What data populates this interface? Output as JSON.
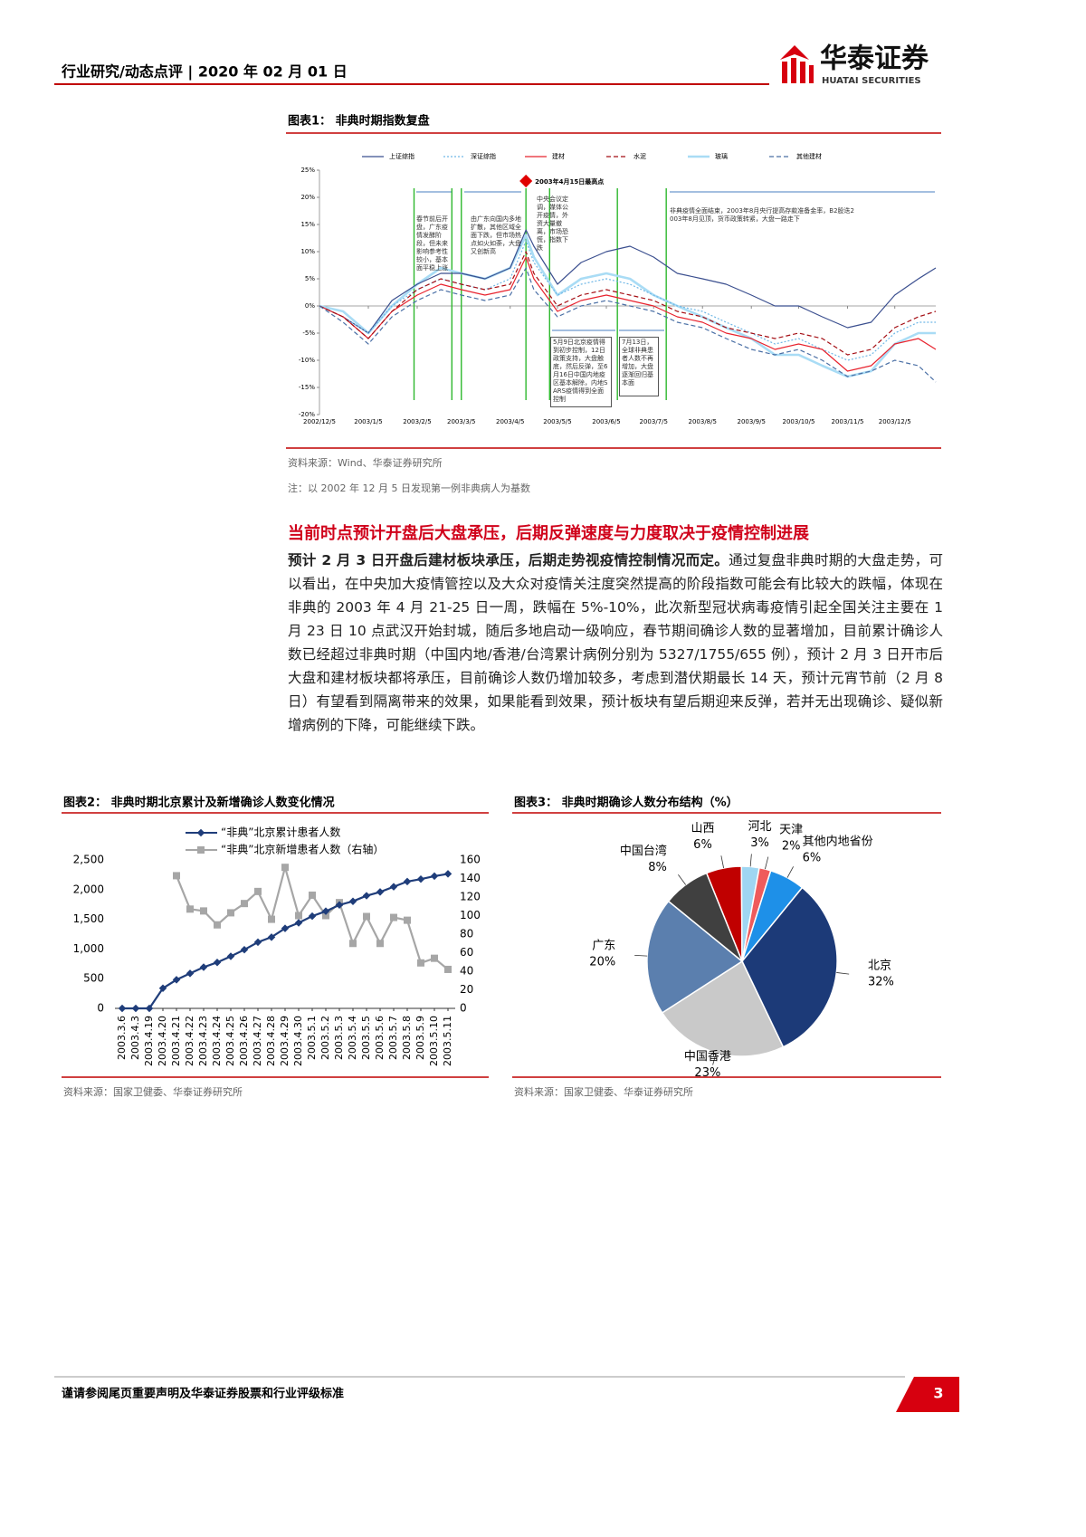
{
  "header": {
    "title": "行业研究/动态点评 | 2020 年 02 月 01 日",
    "logo_cn": "华泰证券",
    "logo_en": "HUATAI SECURITIES"
  },
  "chart_data": [
    {
      "type": "line",
      "title": "图表1： 非典时期指数复盘",
      "x": [
        "2002/12/5",
        "2002/12/20",
        "2003/1/5",
        "2003/1/20",
        "2003/2/5",
        "2003/2/20",
        "2003/3/5",
        "2003/3/20",
        "2003/4/5",
        "2003/4/15",
        "2003/4/20",
        "2003/5/5",
        "2003/5/20",
        "2003/6/5",
        "2003/6/20",
        "2003/7/5",
        "2003/7/20",
        "2003/8/5",
        "2003/8/20",
        "2003/9/5",
        "2003/9/20",
        "2003/10/5",
        "2003/10/20",
        "2003/11/5",
        "2003/11/20",
        "2003/12/5",
        "2003/12/20",
        "2003/12/31"
      ],
      "series": [
        {
          "name": "上证综指",
          "color": "#3b4f8f",
          "style": "solid",
          "values": [
            0,
            -2,
            -5,
            1,
            4,
            6,
            6,
            5,
            7,
            14,
            11,
            4,
            8,
            10,
            11,
            9,
            6,
            5,
            4,
            2,
            0,
            0,
            -2,
            -4,
            -3,
            2,
            5,
            7
          ]
        },
        {
          "name": "深证综指",
          "color": "#6fb7e6",
          "style": "dotted",
          "values": [
            0,
            -2,
            -5,
            0,
            3,
            5,
            4,
            3,
            5,
            12,
            8,
            2,
            4,
            5,
            4,
            2,
            0,
            -1,
            -3,
            -5,
            -7,
            -6,
            -8,
            -10,
            -9,
            -5,
            -3,
            -3
          ]
        },
        {
          "name": "建材",
          "color": "#e8232e",
          "style": "solid",
          "values": [
            0,
            -2,
            -6,
            -1,
            2,
            4,
            3,
            2,
            3,
            9,
            5,
            -1,
            1,
            2,
            1,
            0,
            -2,
            -3,
            -5,
            -6,
            -8,
            -7,
            -8,
            -12,
            -11,
            -7,
            -6,
            -8
          ]
        },
        {
          "name": "水泥",
          "color": "#a50f15",
          "style": "dashed",
          "values": [
            0,
            -2,
            -6,
            -1,
            3,
            5,
            4,
            3,
            4,
            10,
            6,
            0,
            2,
            3,
            2,
            1,
            -1,
            -2,
            -4,
            -5,
            -6,
            -5,
            -6,
            -9,
            -8,
            -4,
            -2,
            -1
          ]
        },
        {
          "name": "玻璃",
          "color": "#a9dcf5",
          "style": "thick",
          "values": [
            0,
            -1,
            -5,
            0,
            4,
            7,
            6,
            5,
            7,
            13,
            9,
            2,
            5,
            6,
            5,
            2,
            0,
            -2,
            -4,
            -6,
            -9,
            -9,
            -11,
            -13,
            -12,
            -7,
            -5,
            -5
          ]
        },
        {
          "name": "其他建材",
          "color": "#4a6fa5",
          "style": "dashed",
          "values": [
            0,
            -3,
            -7,
            -2,
            1,
            3,
            2,
            1,
            2,
            7,
            3,
            -2,
            0,
            1,
            0,
            -1,
            -3,
            -4,
            -6,
            -8,
            -9,
            -8,
            -10,
            -13,
            -12,
            -10,
            -11,
            -14
          ]
        }
      ],
      "xlim": [
        "2002/12/5",
        "2003/12/31"
      ],
      "xticks": [
        "2002/12/5",
        "2003/1/5",
        "2003/2/5",
        "2003/3/5",
        "2003/4/5",
        "2003/5/5",
        "2003/6/5",
        "2003/7/5",
        "2003/8/5",
        "2003/9/5",
        "2003/10/5",
        "2003/11/5",
        "2003/12/5"
      ],
      "ylim": [
        -20,
        25
      ],
      "yticks": [
        {
          "value": 25,
          "label": "25%"
        },
        {
          "value": 20,
          "label": "20%"
        },
        {
          "value": 15,
          "label": "15%"
        },
        {
          "value": 10,
          "label": "10%"
        },
        {
          "value": 5,
          "label": "5%"
        },
        {
          "value": 0,
          "label": "0%"
        },
        {
          "value": -5,
          "label": "-5%"
        },
        {
          "value": -10,
          "label": "-10%"
        },
        {
          "value": -15,
          "label": "-15%"
        },
        {
          "value": -20,
          "label": "-20%"
        }
      ],
      "event_dates": [
        "2003/2/3",
        "2003/2/27",
        "2003/3/5",
        "2003/4/15",
        "2003/4/30",
        "2003/6/12",
        "2003/7/13"
      ],
      "peak": {
        "x": "2003/4/15",
        "label": "2003年4月15日最高点"
      },
      "annotations": [
        "春节前后开盘，广东疫情发酵阶段，但未来影响参考性较小，基本面平稳上涨",
        "由广东向国内多地扩散，其他区域全面下跌，但市场热点如火如荼，大盘又创新高",
        "中央会议定调，媒体公开疫情，外资大量撤离，市场恐慌，指数下跌",
        "非典疫情全面结束，2003年8月央行提高存款准备金率，B2股迭2003年8月见顶，货币政策转紧，大盘一路走下",
        "5月9日北京疫情得到初步控制，12日政策支持，大盘触底，然后反弹，至6月16日中国内地疫区基本解除，内地SARS疫情得到全面控制",
        "7月13日，全球非典患者人数不再增加，大盘逐渐回归基本面"
      ],
      "source": "资料来源：Wind、华泰证券研究所",
      "note": "注：以 2002 年 12 月 5 日发现第一例非典病人为基数"
    },
    {
      "type": "line",
      "title": "图表2： 非典时期北京累计及新增确诊人数变化情况",
      "categories": [
        "2003.3.6",
        "2003.4.3",
        "2003.4.19",
        "2003.4.20",
        "2003.4.21",
        "2003.4.22",
        "2003.4.23",
        "2003.4.24",
        "2003.4.25",
        "2003.4.26",
        "2003.4.27",
        "2003.4.28",
        "2003.4.29",
        "2003.4.30",
        "2003.5.1",
        "2003.5.2",
        "2003.5.3",
        "2003.5.4",
        "2003.5.5",
        "2003.5.6",
        "2003.5.7",
        "2003.5.8",
        "2003.5.9",
        "2003.5.10",
        "2003.5.11"
      ],
      "series": [
        {
          "name": "“非典”北京累计患者人数",
          "color": "#1f3d7a",
          "marker": "diamond",
          "values": [
            0,
            0,
            0,
            339,
            482,
            588,
            693,
            774,
            877,
            988,
            1114,
            1199,
            1347,
            1440,
            1553,
            1636,
            1741,
            1803,
            1897,
            1960,
            2049,
            2136,
            2177,
            2227,
            2265
          ]
        },
        {
          "name": "“非典”北京新增患者人数（右轴）",
          "color": "#a6a6a6",
          "marker": "square",
          "axis": "y2",
          "values": [
            null,
            null,
            null,
            null,
            143,
            107,
            105,
            90,
            103,
            113,
            126,
            96,
            152,
            100,
            122,
            100,
            114,
            70,
            99,
            70,
            98,
            95,
            49,
            54,
            42
          ]
        }
      ],
      "ylim": [
        0,
        2500
      ],
      "yticks": [
        0,
        500,
        {
          "value": 1000,
          "label": "1,000"
        },
        {
          "value": 1500,
          "label": "1,500"
        },
        {
          "value": 2000,
          "label": "2,000"
        },
        {
          "value": 2500,
          "label": "2,500"
        }
      ],
      "y2lim": [
        0,
        160
      ],
      "y2ticks": [
        0,
        20,
        40,
        60,
        80,
        100,
        120,
        140,
        160
      ],
      "source": "资料来源：国家卫健委、华泰证券研究所"
    },
    {
      "type": "pie",
      "title": "图表3： 非典时期确诊人数分布结构（%）",
      "categories": [
        "山西",
        "河北",
        "天津",
        "其他内地省份",
        "北京",
        "中国香港",
        "广东",
        "中国台湾"
      ],
      "values": [
        6,
        3,
        2,
        6,
        32,
        23,
        20,
        8
      ],
      "value_labels": [
        "6%",
        "3%",
        "2%",
        "6%",
        "32%",
        "23%",
        "20%",
        "8%"
      ],
      "colors": [
        "#c00000",
        "#9fd6f2",
        "#ef5b5b",
        "#1e90e8",
        "#1c3a78",
        "#c9c9c9",
        "#5b7fae",
        "#404040"
      ],
      "source": "资料来源：国家卫健委、华泰证券研究所"
    }
  ],
  "body": {
    "heading": "当前时点预计开盘后大盘承压，后期反弹速度与力度取决于疫情控制进展",
    "lead": "预计 2 月 3 日开盘后建材板块承压，后期走势视疫情控制情况而定。",
    "text": "通过复盘非典时期的大盘走势，可以看出，在中央加大疫情管控以及大众对疫情关注度突然提高的阶段指数可能会有比较大的跌幅，体现在非典的 2003 年 4 月 21-25 日一周，跌幅在 5%-10%，此次新型冠状病毒疫情引起全国关注主要在 1 月 23 日 10 点武汉开始封城，随后多地启动一级响应，春节期间确诊人数的显著增加，目前累计确诊人数已经超过非典时期（中国内地/香港/台湾累计病例分别为 5327/1755/655 例），预计 2 月 3 日开市后大盘和建材板块都将承压，目前确诊人数仍增加较多，考虑到潜伏期最长 14 天，预计元宵节前（2 月 8 日）有望看到隔离带来的效果，如果能看到效果，预计板块有望后期迎来反弹，若并无出现确诊、疑似新增病例的下降，可能继续下跌。"
  },
  "footer": {
    "disclaimer": "谨请参阅尾页重要声明及华泰证券股票和行业评级标准",
    "page": "3"
  }
}
